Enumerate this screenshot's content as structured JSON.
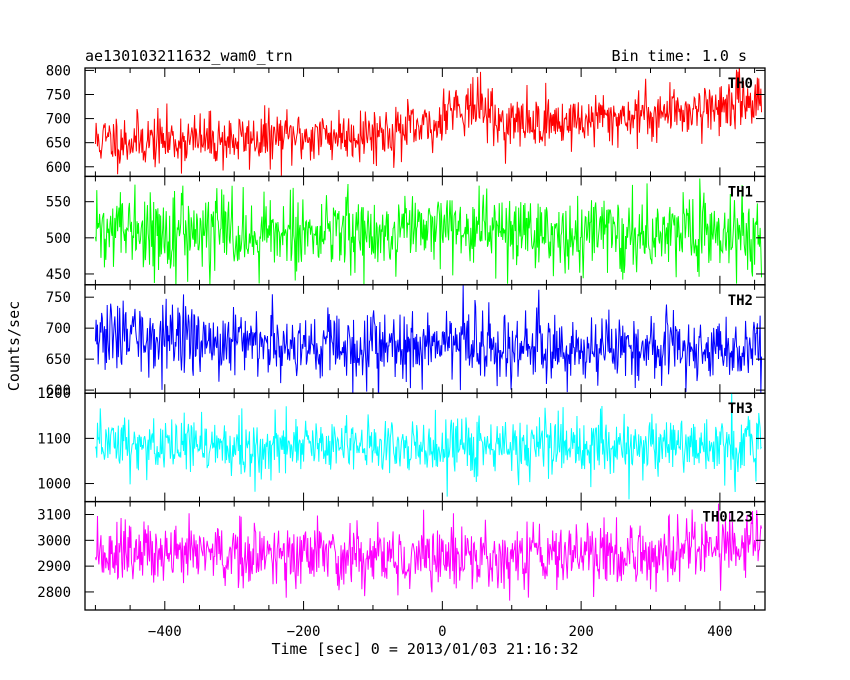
{
  "chart_data": {
    "type": "line",
    "title": "ae130103211632_wam0_trn",
    "bin_time_label": "Bin time: 1.0 s",
    "xlabel": "Time [sec] 0 = 2013/01/03 21:16:32",
    "ylabel": "Counts/sec",
    "xlim": [
      -515,
      465
    ],
    "x_data_range": [
      -500,
      460
    ],
    "x_ticks": [
      -400,
      -200,
      0,
      200,
      400
    ],
    "x_tick_labels": [
      "−400",
      "−200",
      "0",
      "200",
      "400"
    ],
    "grid": false,
    "panels": [
      {
        "name": "TH0",
        "color": "#ff0000",
        "ylim": [
          580,
          805
        ],
        "y_ticks": [
          600,
          650,
          700,
          750,
          800
        ],
        "y_tick_labels": [
          "600",
          "650",
          "700",
          "750",
          "800"
        ],
        "trend": [
          [
            -500,
            655
          ],
          [
            -300,
            655
          ],
          [
            -100,
            670
          ],
          [
            -5,
            680
          ],
          [
            0,
            725
          ],
          [
            60,
            725
          ],
          [
            80,
            690
          ],
          [
            200,
            695
          ],
          [
            400,
            725
          ],
          [
            460,
            745
          ]
        ],
        "noise_sd": 28,
        "seed": 11
      },
      {
        "name": "TH1",
        "color": "#00ff00",
        "ylim": [
          435,
          585
        ],
        "y_ticks": [
          450,
          500,
          550
        ],
        "y_tick_labels": [
          "450",
          "500",
          "550"
        ],
        "trend": [
          [
            -500,
            508
          ],
          [
            460,
            508
          ]
        ],
        "noise_sd": 26,
        "seed": 22
      },
      {
        "name": "TH2",
        "color": "#0000ff",
        "ylim": [
          595,
          770
        ],
        "y_ticks": [
          600,
          650,
          700,
          750
        ],
        "y_tick_labels": [
          "600",
          "650",
          "700",
          "750"
        ],
        "trend": [
          [
            -500,
            685
          ],
          [
            -300,
            680
          ],
          [
            0,
            670
          ],
          [
            460,
            665
          ]
        ],
        "noise_sd": 28,
        "seed": 33
      },
      {
        "name": "TH3",
        "color": "#00ffff",
        "ylim": [
          960,
          1200
        ],
        "y_ticks": [
          1000,
          1100,
          1200
        ],
        "y_tick_labels": [
          "1000",
          "1100",
          "1200"
        ],
        "trend": [
          [
            -500,
            1085
          ],
          [
            460,
            1080
          ]
        ],
        "noise_sd": 34,
        "seed": 44
      },
      {
        "name": "TH0123",
        "color": "#ff00ff",
        "ylim": [
          2730,
          3150
        ],
        "y_ticks": [
          2800,
          2900,
          3000,
          3100
        ],
        "y_tick_labels": [
          "2800",
          "2900",
          "3000",
          "3100"
        ],
        "trend": [
          [
            -500,
            2945
          ],
          [
            0,
            2940
          ],
          [
            300,
            2945
          ],
          [
            460,
            2990
          ]
        ],
        "noise_sd": 62,
        "seed": 55
      }
    ]
  }
}
